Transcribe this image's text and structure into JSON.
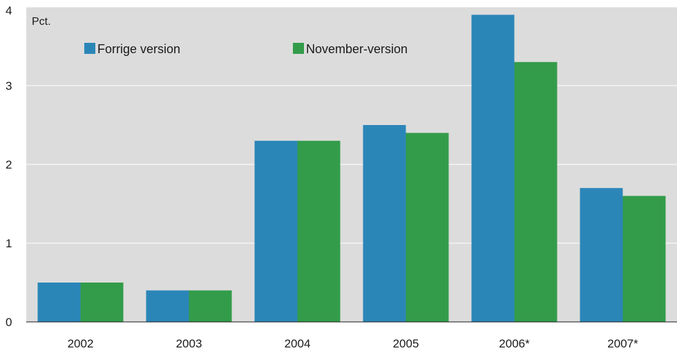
{
  "chart_data": {
    "type": "bar",
    "unit_label": "Pct.",
    "categories": [
      "2002",
      "2003",
      "2004",
      "2005",
      "2006*",
      "2007*"
    ],
    "series": [
      {
        "name": "Forrige version",
        "color": "#2b86b8",
        "values": [
          0.5,
          0.4,
          2.3,
          2.5,
          3.9,
          1.7
        ]
      },
      {
        "name": "November-version",
        "color": "#339c4a",
        "values": [
          0.5,
          0.4,
          2.3,
          2.4,
          3.3,
          1.6
        ]
      }
    ],
    "ylim": [
      0,
      4
    ],
    "yticks": [
      "0",
      "1",
      "2",
      "3",
      "4"
    ],
    "grid": true,
    "legend_position": "top-left",
    "background": "#dcdcdc",
    "gridline_color": "#ffffff"
  }
}
